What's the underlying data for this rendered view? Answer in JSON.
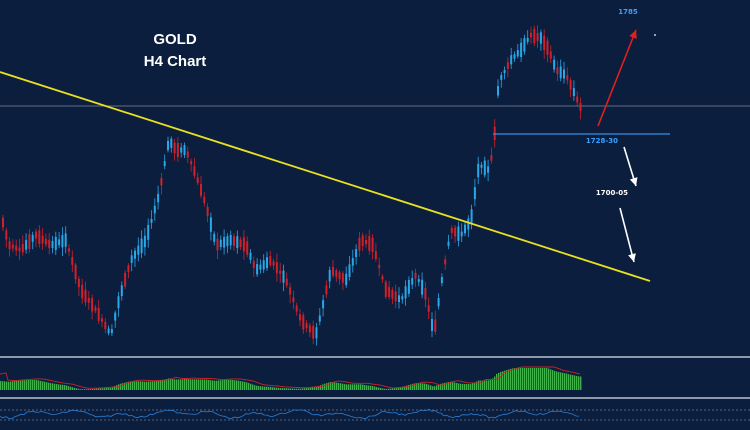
{
  "chart_data": {
    "type": "candlestick",
    "title": "GOLD",
    "subtitle": "H4 Chart",
    "colors": {
      "background": "#0c1e3d",
      "bull": "#2aa7e8",
      "bear": "#d0202a",
      "trendline": "#e8e020",
      "level_line": "#3a8fe0",
      "price_line": "#7d8aa0",
      "arrow_up": "#e02020",
      "arrow_down": "#ffffff",
      "osc_bar": "#3fb04a",
      "osc_signal": "#d0202a",
      "rsi_line": "#2a7fd6"
    },
    "annotations": [
      {
        "id": "target-high",
        "text": "1785",
        "color": "#3aa0ff"
      },
      {
        "id": "support-level",
        "text": "1728-30",
        "color": "#3aa0ff"
      },
      {
        "id": "target-low",
        "text": "1700-05",
        "color": "#ffffff"
      }
    ]
  }
}
